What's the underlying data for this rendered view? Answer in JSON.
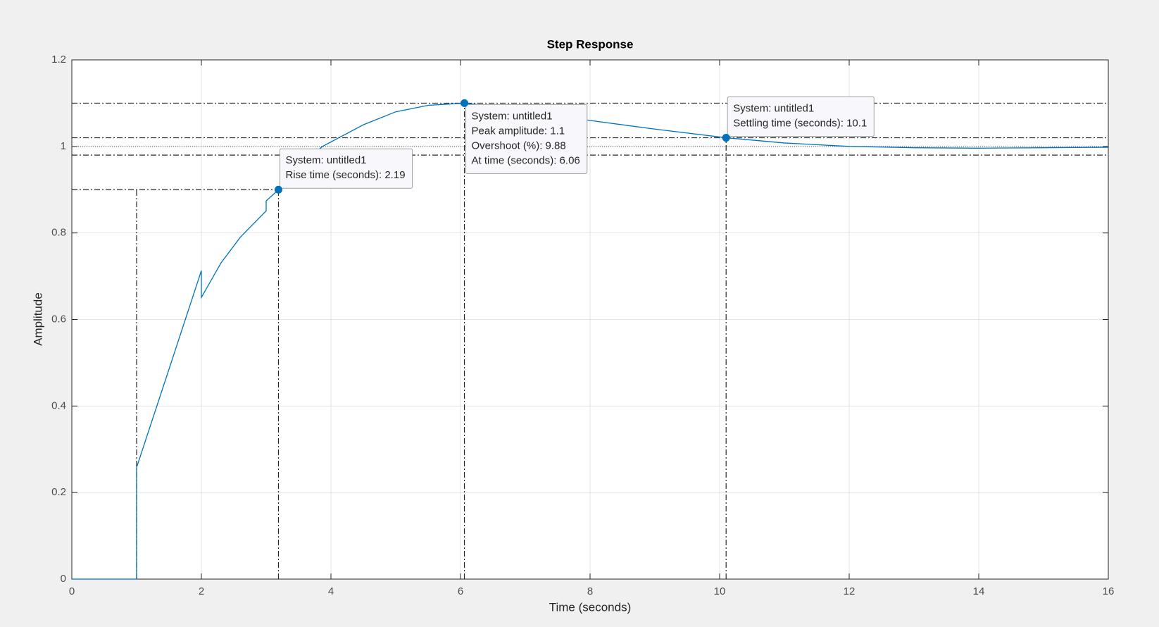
{
  "chart_data": {
    "type": "line",
    "title": "Step Response",
    "xlabel": "Time (seconds)",
    "ylabel": "Amplitude",
    "x": [
      0,
      1,
      1,
      1.5,
      2,
      2,
      2.3,
      2.6,
      3,
      3,
      3.19,
      3.5,
      3.87,
      4.5,
      5,
      5.5,
      6.06,
      7,
      8,
      9,
      10.1,
      11,
      12,
      13,
      14,
      15,
      16
    ],
    "series": [
      {
        "color": "#0072bd",
        "values": [
          0,
          0,
          0.258,
          0.485,
          0.713,
          0.651,
          0.73,
          0.79,
          0.851,
          0.874,
          0.9,
          0.955,
          1.0,
          1.05,
          1.08,
          1.095,
          1.1,
          1.085,
          1.06,
          1.04,
          1.02,
          1.008,
          1.0,
          0.997,
          0.996,
          0.997,
          0.998
        ]
      }
    ],
    "xlim": [
      0,
      16
    ],
    "xticks": [
      0,
      2,
      4,
      6,
      8,
      10,
      12,
      14,
      16
    ],
    "ylim": [
      0,
      1.2
    ],
    "yticks": [
      0,
      0.2,
      0.4,
      0.6,
      0.8,
      1,
      1.2
    ],
    "grid": true,
    "final_value": 1,
    "settling_band": [
      0.98,
      1.02
    ],
    "rise_start": 1,
    "annotations": [
      {
        "kind": "rise",
        "x": 3.19,
        "y": 0.9,
        "lines": [
          "System: untitled1",
          "Rise time (seconds): 2.19"
        ]
      },
      {
        "kind": "peak",
        "x": 6.06,
        "y": 1.1,
        "lines": [
          "System: untitled1",
          "Peak amplitude: 1.1",
          "Overshoot (%): 9.88",
          "At time (seconds): 6.06"
        ]
      },
      {
        "kind": "settling",
        "x": 10.1,
        "y": 1.02,
        "lines": [
          "System: untitled1",
          "Settling time (seconds): 10.1"
        ]
      }
    ]
  }
}
